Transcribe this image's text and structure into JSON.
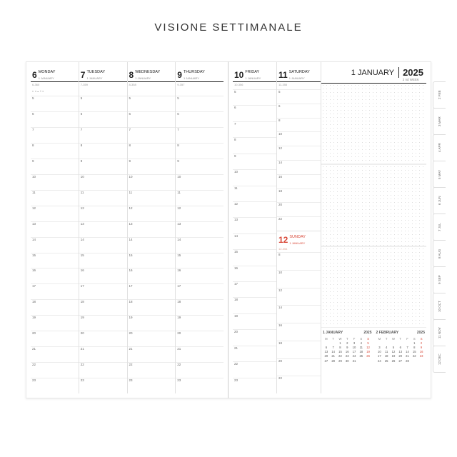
{
  "title": "VISIONE SETTIMANALE",
  "year": "2025",
  "month_label": "1 JANUARY",
  "week_label": "2 nd WEEK",
  "colors": {
    "text": "#222222",
    "muted": "#999999",
    "rule": "#e0e0e0",
    "accent_red": "#d94a3a",
    "dot": "#dcdcdc"
  },
  "moon_row": "◐ ◑ ◒ ◓ ◐",
  "left_days": [
    {
      "num": "6",
      "name": "MONDAY",
      "month": "1 JANUARY",
      "sub": "6-360"
    },
    {
      "num": "7",
      "name": "TUESDAY",
      "month": "1 JANUARY",
      "sub": "7-359"
    },
    {
      "num": "8",
      "name": "WEDNESDAY",
      "month": "1 JANUARY",
      "sub": "8-358"
    },
    {
      "num": "9",
      "name": "THURSDAY",
      "month": "1 JANUARY",
      "sub": "9-357"
    }
  ],
  "right_days": {
    "fri": {
      "num": "10",
      "name": "FRIDAY",
      "month": "1 JANUARY",
      "sub": "10-356"
    },
    "sat": {
      "num": "11",
      "name": "SATURDAY",
      "month": "1 JANUARY",
      "sub": "11-355"
    },
    "sun": {
      "num": "12",
      "name": "SUNDAY",
      "month": "1 JANUARY",
      "sub": "12-354"
    }
  },
  "hours_full": [
    "5",
    "6",
    "7",
    "8",
    "9",
    "10",
    "11",
    "12",
    "13",
    "14",
    "15",
    "16",
    "17",
    "18",
    "19",
    "20",
    "21",
    "22",
    "23"
  ],
  "hours_sat": [
    "5",
    "6",
    "8",
    "10",
    "12",
    "14",
    "16",
    "18",
    "20",
    "22"
  ],
  "hours_sun_after": [
    "8",
    "10",
    "12",
    "14",
    "16",
    "18",
    "20",
    "22"
  ],
  "minicals": [
    {
      "title": "1 JANUARY",
      "year": "2025",
      "dow": [
        "M",
        "T",
        "W",
        "T",
        "F",
        "S",
        "S"
      ],
      "rows": [
        [
          "",
          "",
          "1",
          "2",
          "3",
          "4",
          "5"
        ],
        [
          "6",
          "7",
          "8",
          "9",
          "10",
          "11",
          "12"
        ],
        [
          "13",
          "14",
          "15",
          "16",
          "17",
          "18",
          "19"
        ],
        [
          "20",
          "21",
          "22",
          "23",
          "24",
          "25",
          "26"
        ],
        [
          "27",
          "28",
          "29",
          "30",
          "31",
          "",
          ""
        ]
      ]
    },
    {
      "title": "2 FEBRUARY",
      "year": "2025",
      "dow": [
        "M",
        "T",
        "W",
        "T",
        "F",
        "S",
        "S"
      ],
      "rows": [
        [
          "",
          "",
          "",
          "",
          "",
          "1",
          "2"
        ],
        [
          "3",
          "4",
          "5",
          "6",
          "7",
          "8",
          "9"
        ],
        [
          "10",
          "11",
          "12",
          "13",
          "14",
          "15",
          "16"
        ],
        [
          "17",
          "18",
          "19",
          "20",
          "21",
          "22",
          "23"
        ],
        [
          "24",
          "25",
          "26",
          "27",
          "28",
          "",
          ""
        ]
      ]
    }
  ],
  "tabs": [
    "2 FEB",
    "3 MAR",
    "4 APR",
    "5 MAY",
    "6 JUN",
    "7 JUL",
    "8 AUG",
    "9 SEP",
    "10 OCT",
    "11 NOV",
    "12 DEC"
  ]
}
